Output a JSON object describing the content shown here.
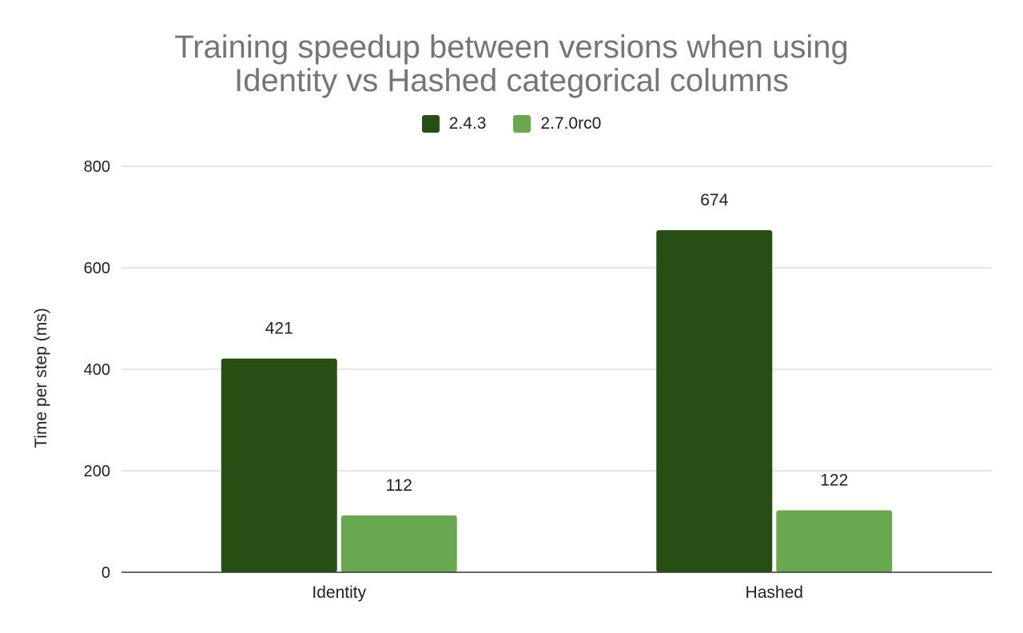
{
  "chart_data": {
    "type": "bar",
    "title_lines": [
      "Training speedup between versions when using",
      "Identity vs Hashed categorical columns"
    ],
    "categories": [
      "Identity",
      "Hashed"
    ],
    "series": [
      {
        "name": "2.4.3",
        "values": [
          421,
          674
        ],
        "color": "#274e13"
      },
      {
        "name": "2.7.0rc0",
        "values": [
          112,
          122
        ],
        "color": "#6aa84f"
      }
    ],
    "xlabel": "",
    "ylabel": "Time per step (ms)",
    "ylim": [
      0,
      800
    ],
    "yticks": [
      0,
      200,
      400,
      600,
      800
    ],
    "grid": true,
    "legend_position": "top"
  }
}
